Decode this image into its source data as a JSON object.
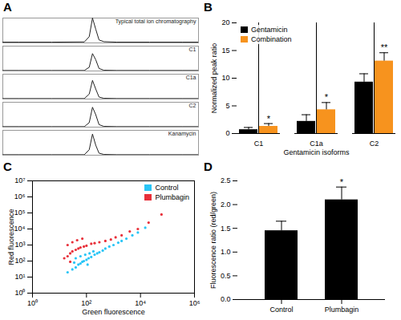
{
  "chart_data": [
    {
      "type": "line",
      "title": "A",
      "x": [
        0.5,
        1,
        2,
        3,
        3.15,
        3.25,
        3.35,
        3.45,
        3.6,
        4,
        5,
        6,
        6.5
      ],
      "series": [
        {
          "name": "Typical total ion chromatography",
          "color": "#222222",
          "values": [
            3,
            3,
            3,
            4,
            25,
            100,
            55,
            12,
            5,
            3,
            3,
            3,
            3
          ]
        },
        {
          "name": "C1",
          "color": "#222222",
          "values": [
            2,
            2,
            2,
            2,
            15,
            70,
            45,
            10,
            3,
            2,
            2,
            2,
            2
          ]
        },
        {
          "name": "C1a",
          "color": "#222222",
          "values": [
            2,
            2,
            2,
            2,
            20,
            75,
            40,
            8,
            3,
            2,
            2,
            2,
            2
          ]
        },
        {
          "name": "C2",
          "color": "#222222",
          "values": [
            2,
            2,
            2,
            2,
            18,
            80,
            50,
            10,
            3,
            2,
            2,
            2,
            2
          ]
        },
        {
          "name": "Kanamycin",
          "color": "#222222",
          "values": [
            2,
            2,
            2,
            2,
            22,
            85,
            40,
            8,
            3,
            2,
            2,
            2,
            2
          ]
        }
      ],
      "xlim": [
        0.5,
        6.5
      ],
      "ylim": [
        0,
        100
      ],
      "tick_labels": false
    },
    {
      "type": "bar",
      "title": "B",
      "categories": [
        "C1",
        "C1a",
        "C2"
      ],
      "series": [
        {
          "name": "Gentamicin",
          "color": "#000000",
          "values": [
            0.7,
            2.2,
            9.3
          ],
          "errors": [
            0.4,
            1.2,
            1.5
          ]
        },
        {
          "name": "Combination",
          "color": "#f7931e",
          "values": [
            1.3,
            4.3,
            13.1
          ],
          "errors": [
            0.5,
            1.3,
            1.5
          ],
          "annotations": [
            "*",
            "*",
            "**"
          ]
        }
      ],
      "x_label": "Gentamicin isoforms",
      "y_label": "Normalized peak ratio",
      "ylim": [
        0,
        20
      ],
      "yticks": [
        0,
        5,
        10,
        15,
        20
      ],
      "legend": "top-left"
    },
    {
      "type": "scatter",
      "title": "C",
      "series": [
        {
          "name": "Control",
          "color": "#29c5f6",
          "x": [
            20,
            30,
            40,
            50,
            60,
            80,
            100,
            120,
            150,
            200,
            250,
            300,
            400,
            500,
            700,
            1000,
            1500,
            2000,
            3000,
            5000,
            8000,
            15000,
            40,
            60,
            90,
            130,
            180,
            35,
            70,
            110
          ],
          "values": [
            20,
            30,
            40,
            60,
            70,
            100,
            120,
            150,
            180,
            250,
            300,
            350,
            450,
            600,
            800,
            1000,
            1400,
            1800,
            2500,
            4000,
            6000,
            12000,
            150,
            200,
            250,
            300,
            400,
            80,
            90,
            60
          ]
        },
        {
          "name": "Plumbagin",
          "color": "#e8303a",
          "x": [
            15,
            20,
            25,
            30,
            40,
            50,
            60,
            80,
            100,
            150,
            200,
            300,
            500,
            800,
            1200,
            2000,
            4000,
            8000,
            20000,
            60000,
            20,
            30,
            45,
            70,
            25
          ],
          "values": [
            150,
            200,
            300,
            400,
            500,
            600,
            700,
            800,
            900,
            1200,
            1300,
            1500,
            1800,
            2200,
            3000,
            4000,
            7000,
            10000,
            25000,
            80000,
            1000,
            1500,
            2000,
            2500,
            90
          ]
        }
      ],
      "x_label": "Green fluorescence",
      "y_label": "Red fluorescence",
      "log": true,
      "xlim": [
        1,
        1000000
      ],
      "ylim": [
        1,
        10000000
      ],
      "xticks": [
        {
          "value": 1,
          "label": "10⁰"
        },
        {
          "value": 100,
          "label": "10²"
        },
        {
          "value": 10000,
          "label": "10⁴"
        },
        {
          "value": 1000000,
          "label": "10⁶"
        }
      ],
      "yticks": [
        {
          "value": 1,
          "label": "10⁰"
        },
        {
          "value": 10,
          "label": "10¹"
        },
        {
          "value": 100,
          "label": "10²"
        },
        {
          "value": 1000,
          "label": "10³"
        },
        {
          "value": 10000,
          "label": "10⁴"
        },
        {
          "value": 100000,
          "label": "10⁵"
        },
        {
          "value": 1000000,
          "label": "10⁶"
        },
        {
          "value": 10000000,
          "label": "10⁷"
        }
      ],
      "legend": "top-right"
    },
    {
      "type": "bar",
      "title": "D",
      "categories": [
        "Control",
        "Plumbagin"
      ],
      "values": [
        1.45,
        2.1
      ],
      "errors": [
        0.2,
        0.27
      ],
      "annotations": [
        null,
        "*"
      ],
      "color": "#000000",
      "y_label": "Fluorescence ratio (red/green)",
      "ylim": [
        0,
        2.5
      ],
      "yticks": [
        {
          "value": 0,
          "label": "0.0"
        },
        {
          "value": 0.5,
          "label": "0.5"
        },
        {
          "value": 1,
          "label": "1.0"
        },
        {
          "value": 1.5,
          "label": "1.5"
        },
        {
          "value": 2,
          "label": "2.0"
        },
        {
          "value": 2.5,
          "label": "2.5"
        }
      ]
    }
  ]
}
